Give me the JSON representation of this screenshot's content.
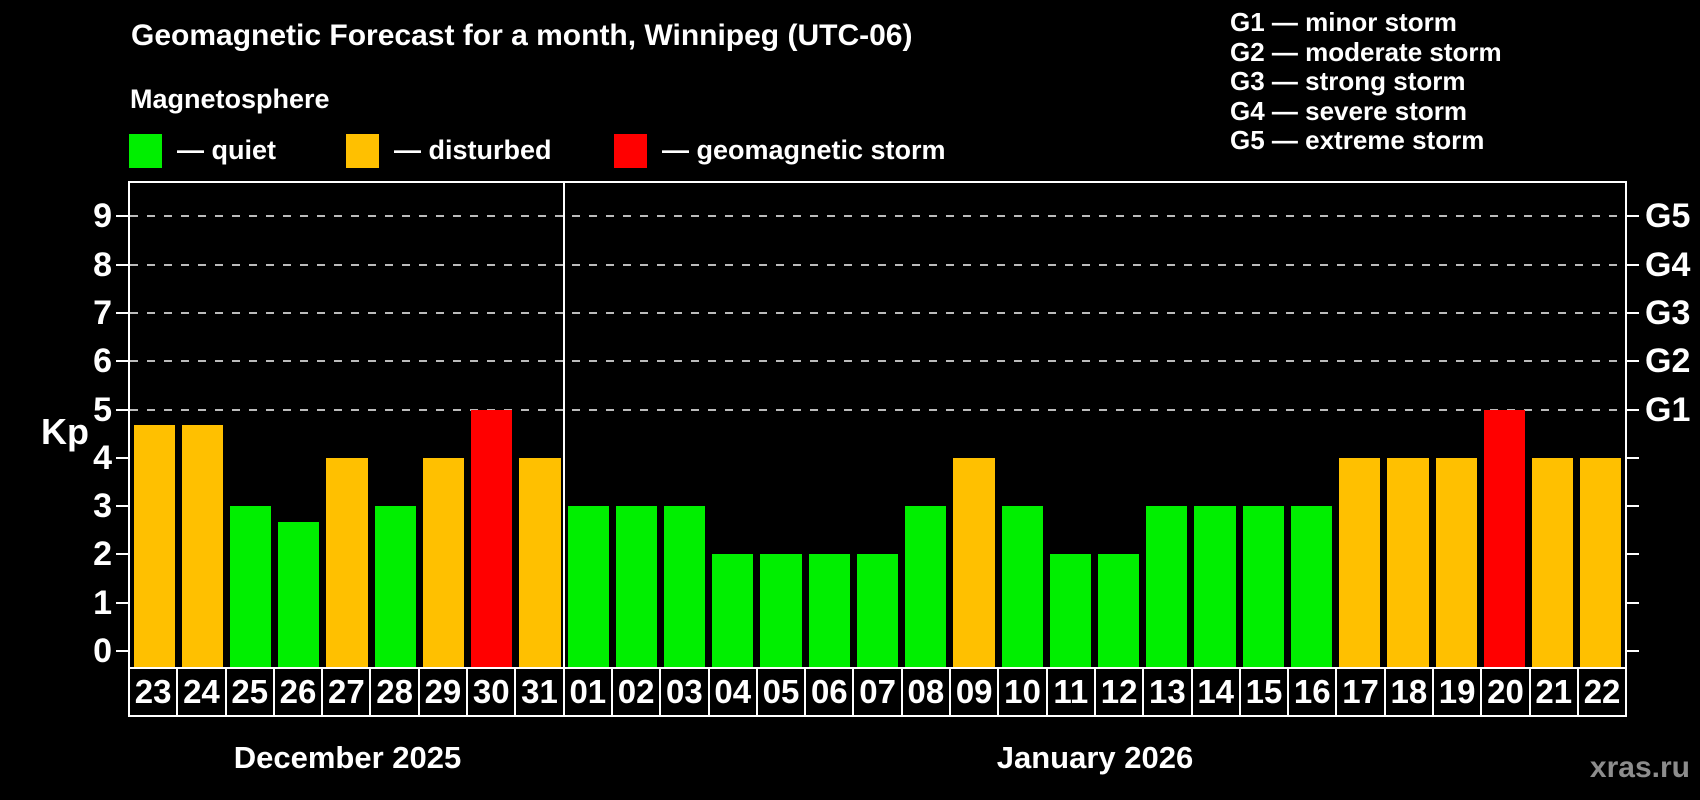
{
  "watermark": "xras.ru",
  "chart_data": {
    "type": "bar",
    "title": "Geomagnetic Forecast for a month, Winnipeg (UTC-06)",
    "subtitle": "Magnetosphere",
    "ylabel": "Kp",
    "ylim": [
      0,
      9.6
    ],
    "y_ticks": [
      0,
      1,
      2,
      3,
      4,
      5,
      6,
      7,
      8,
      9
    ],
    "grid": "dashed horizontal gridlines at Kp 5-9 only",
    "legend_position": "top-left",
    "status_colors": {
      "quiet": "#00ef00",
      "disturbed": "#ffc000",
      "storm": "#ff0000"
    },
    "status_legend": {
      "items": [
        {
          "name": "quiet",
          "label": "— quiet",
          "color": "#00ef00"
        },
        {
          "name": "disturbed",
          "label": "— disturbed",
          "color": "#ffc000"
        },
        {
          "name": "storm",
          "label": "— geomagnetic storm",
          "color": "#ff0000"
        }
      ]
    },
    "g_scale_legend": {
      "lines": [
        "G1 — minor storm",
        "G2 — moderate storm",
        "G3 — strong storm",
        "G4 — severe storm",
        "G5 — extreme storm"
      ]
    },
    "right_axis": [
      {
        "label": "G1",
        "kp": 5
      },
      {
        "label": "G2",
        "kp": 6
      },
      {
        "label": "G3",
        "kp": 7
      },
      {
        "label": "G4",
        "kp": 8
      },
      {
        "label": "G5",
        "kp": 9
      }
    ],
    "months": [
      {
        "label": "December 2025",
        "days": [
          {
            "day": "23",
            "kp": 4.67,
            "status": "disturbed"
          },
          {
            "day": "24",
            "kp": 4.67,
            "status": "disturbed"
          },
          {
            "day": "25",
            "kp": 3,
            "status": "quiet"
          },
          {
            "day": "26",
            "kp": 2.67,
            "status": "quiet"
          },
          {
            "day": "27",
            "kp": 4,
            "status": "disturbed"
          },
          {
            "day": "28",
            "kp": 3,
            "status": "quiet"
          },
          {
            "day": "29",
            "kp": 4,
            "status": "disturbed"
          },
          {
            "day": "30",
            "kp": 5,
            "status": "storm"
          },
          {
            "day": "31",
            "kp": 4,
            "status": "disturbed"
          }
        ]
      },
      {
        "label": "January 2026",
        "days": [
          {
            "day": "01",
            "kp": 3,
            "status": "quiet"
          },
          {
            "day": "02",
            "kp": 3,
            "status": "quiet"
          },
          {
            "day": "03",
            "kp": 3,
            "status": "quiet"
          },
          {
            "day": "04",
            "kp": 2,
            "status": "quiet"
          },
          {
            "day": "05",
            "kp": 2,
            "status": "quiet"
          },
          {
            "day": "06",
            "kp": 2,
            "status": "quiet"
          },
          {
            "day": "07",
            "kp": 2,
            "status": "quiet"
          },
          {
            "day": "08",
            "kp": 3,
            "status": "quiet"
          },
          {
            "day": "09",
            "kp": 4,
            "status": "disturbed"
          },
          {
            "day": "10",
            "kp": 3,
            "status": "quiet"
          },
          {
            "day": "11",
            "kp": 2,
            "status": "quiet"
          },
          {
            "day": "12",
            "kp": 2,
            "status": "quiet"
          },
          {
            "day": "13",
            "kp": 3,
            "status": "quiet"
          },
          {
            "day": "14",
            "kp": 3,
            "status": "quiet"
          },
          {
            "day": "15",
            "kp": 3,
            "status": "quiet"
          },
          {
            "day": "16",
            "kp": 3,
            "status": "quiet"
          },
          {
            "day": "17",
            "kp": 4,
            "status": "disturbed"
          },
          {
            "day": "18",
            "kp": 4,
            "status": "disturbed"
          },
          {
            "day": "19",
            "kp": 4,
            "status": "disturbed"
          },
          {
            "day": "20",
            "kp": 5,
            "status": "storm"
          },
          {
            "day": "21",
            "kp": 4,
            "status": "disturbed"
          },
          {
            "day": "22",
            "kp": 4,
            "status": "disturbed"
          }
        ]
      }
    ]
  }
}
